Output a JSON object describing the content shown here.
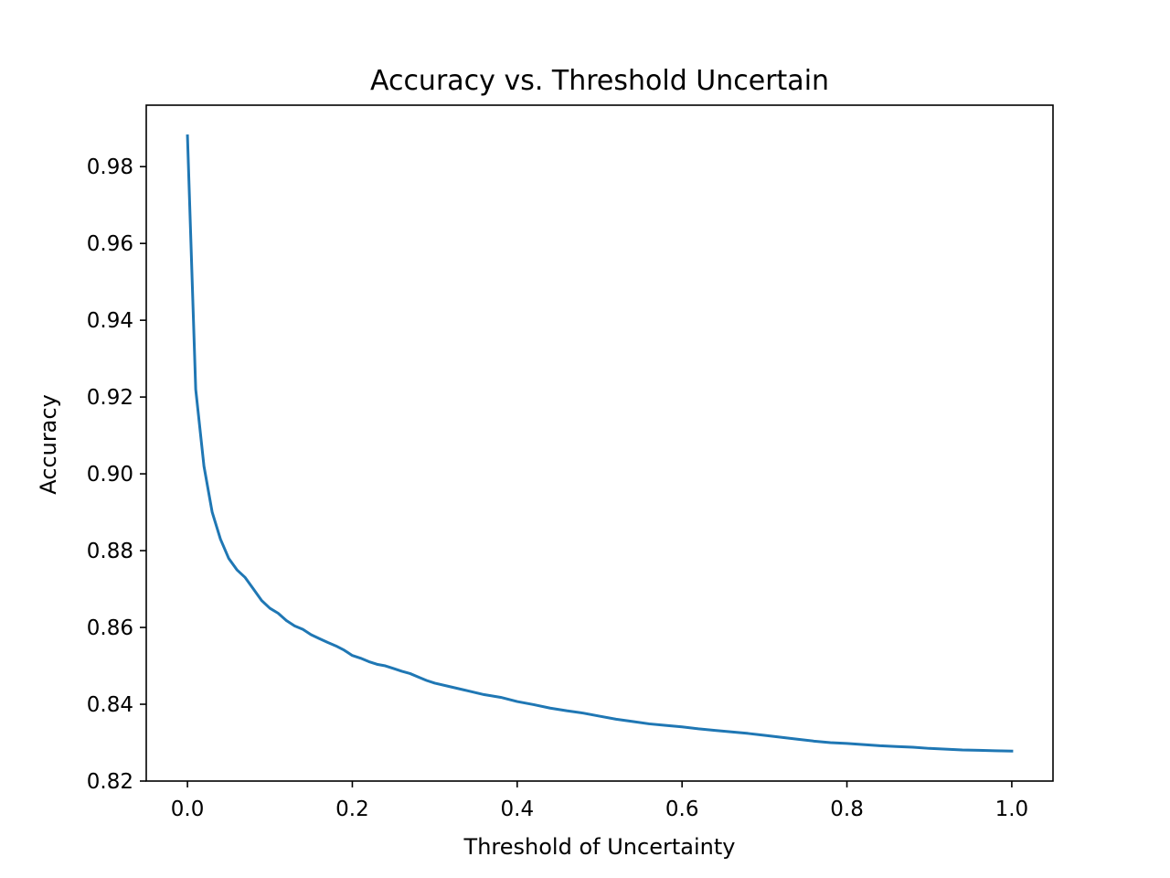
{
  "chart_data": {
    "type": "line",
    "title": "Accuracy vs. Threshold Uncertain",
    "xlabel": "Threshold of Uncertainty",
    "ylabel": "Accuracy",
    "xlim": [
      -0.05,
      1.05
    ],
    "ylim": [
      0.82,
      0.996
    ],
    "xticks": [
      0.0,
      0.2,
      0.4,
      0.6,
      0.8,
      1.0
    ],
    "xtick_labels": [
      "0.0",
      "0.2",
      "0.4",
      "0.6",
      "0.8",
      "1.0"
    ],
    "yticks": [
      0.82,
      0.84,
      0.86,
      0.88,
      0.9,
      0.92,
      0.94,
      0.96,
      0.98
    ],
    "ytick_labels": [
      "0.82",
      "0.84",
      "0.86",
      "0.88",
      "0.90",
      "0.92",
      "0.94",
      "0.96",
      "0.98"
    ],
    "grid": false,
    "series": [
      {
        "color": "#1f77b4",
        "x": [
          0.0,
          0.01,
          0.02,
          0.03,
          0.04,
          0.05,
          0.06,
          0.07,
          0.08,
          0.09,
          0.1,
          0.11,
          0.12,
          0.13,
          0.14,
          0.15,
          0.16,
          0.17,
          0.18,
          0.19,
          0.2,
          0.21,
          0.22,
          0.23,
          0.24,
          0.25,
          0.26,
          0.27,
          0.28,
          0.29,
          0.3,
          0.32,
          0.34,
          0.36,
          0.38,
          0.4,
          0.42,
          0.44,
          0.46,
          0.48,
          0.5,
          0.52,
          0.54,
          0.56,
          0.58,
          0.6,
          0.62,
          0.64,
          0.66,
          0.68,
          0.7,
          0.72,
          0.74,
          0.76,
          0.78,
          0.8,
          0.82,
          0.84,
          0.86,
          0.88,
          0.9,
          0.92,
          0.94,
          0.96,
          0.98,
          1.0
        ],
        "y": [
          0.988,
          0.922,
          0.902,
          0.89,
          0.883,
          0.878,
          0.875,
          0.873,
          0.87,
          0.867,
          0.865,
          0.8637,
          0.8618,
          0.8604,
          0.8595,
          0.8581,
          0.8571,
          0.8561,
          0.8552,
          0.8541,
          0.8527,
          0.852,
          0.8511,
          0.8504,
          0.85,
          0.8493,
          0.8486,
          0.848,
          0.8471,
          0.8462,
          0.8455,
          0.8445,
          0.8435,
          0.8425,
          0.8418,
          0.8407,
          0.8399,
          0.839,
          0.8383,
          0.8377,
          0.8369,
          0.8361,
          0.8355,
          0.8349,
          0.8345,
          0.8341,
          0.8336,
          0.8332,
          0.8328,
          0.8324,
          0.8319,
          0.8314,
          0.8309,
          0.8304,
          0.83,
          0.8298,
          0.8295,
          0.8292,
          0.829,
          0.8288,
          0.8285,
          0.8283,
          0.8281,
          0.828,
          0.8279,
          0.8278
        ]
      }
    ]
  }
}
